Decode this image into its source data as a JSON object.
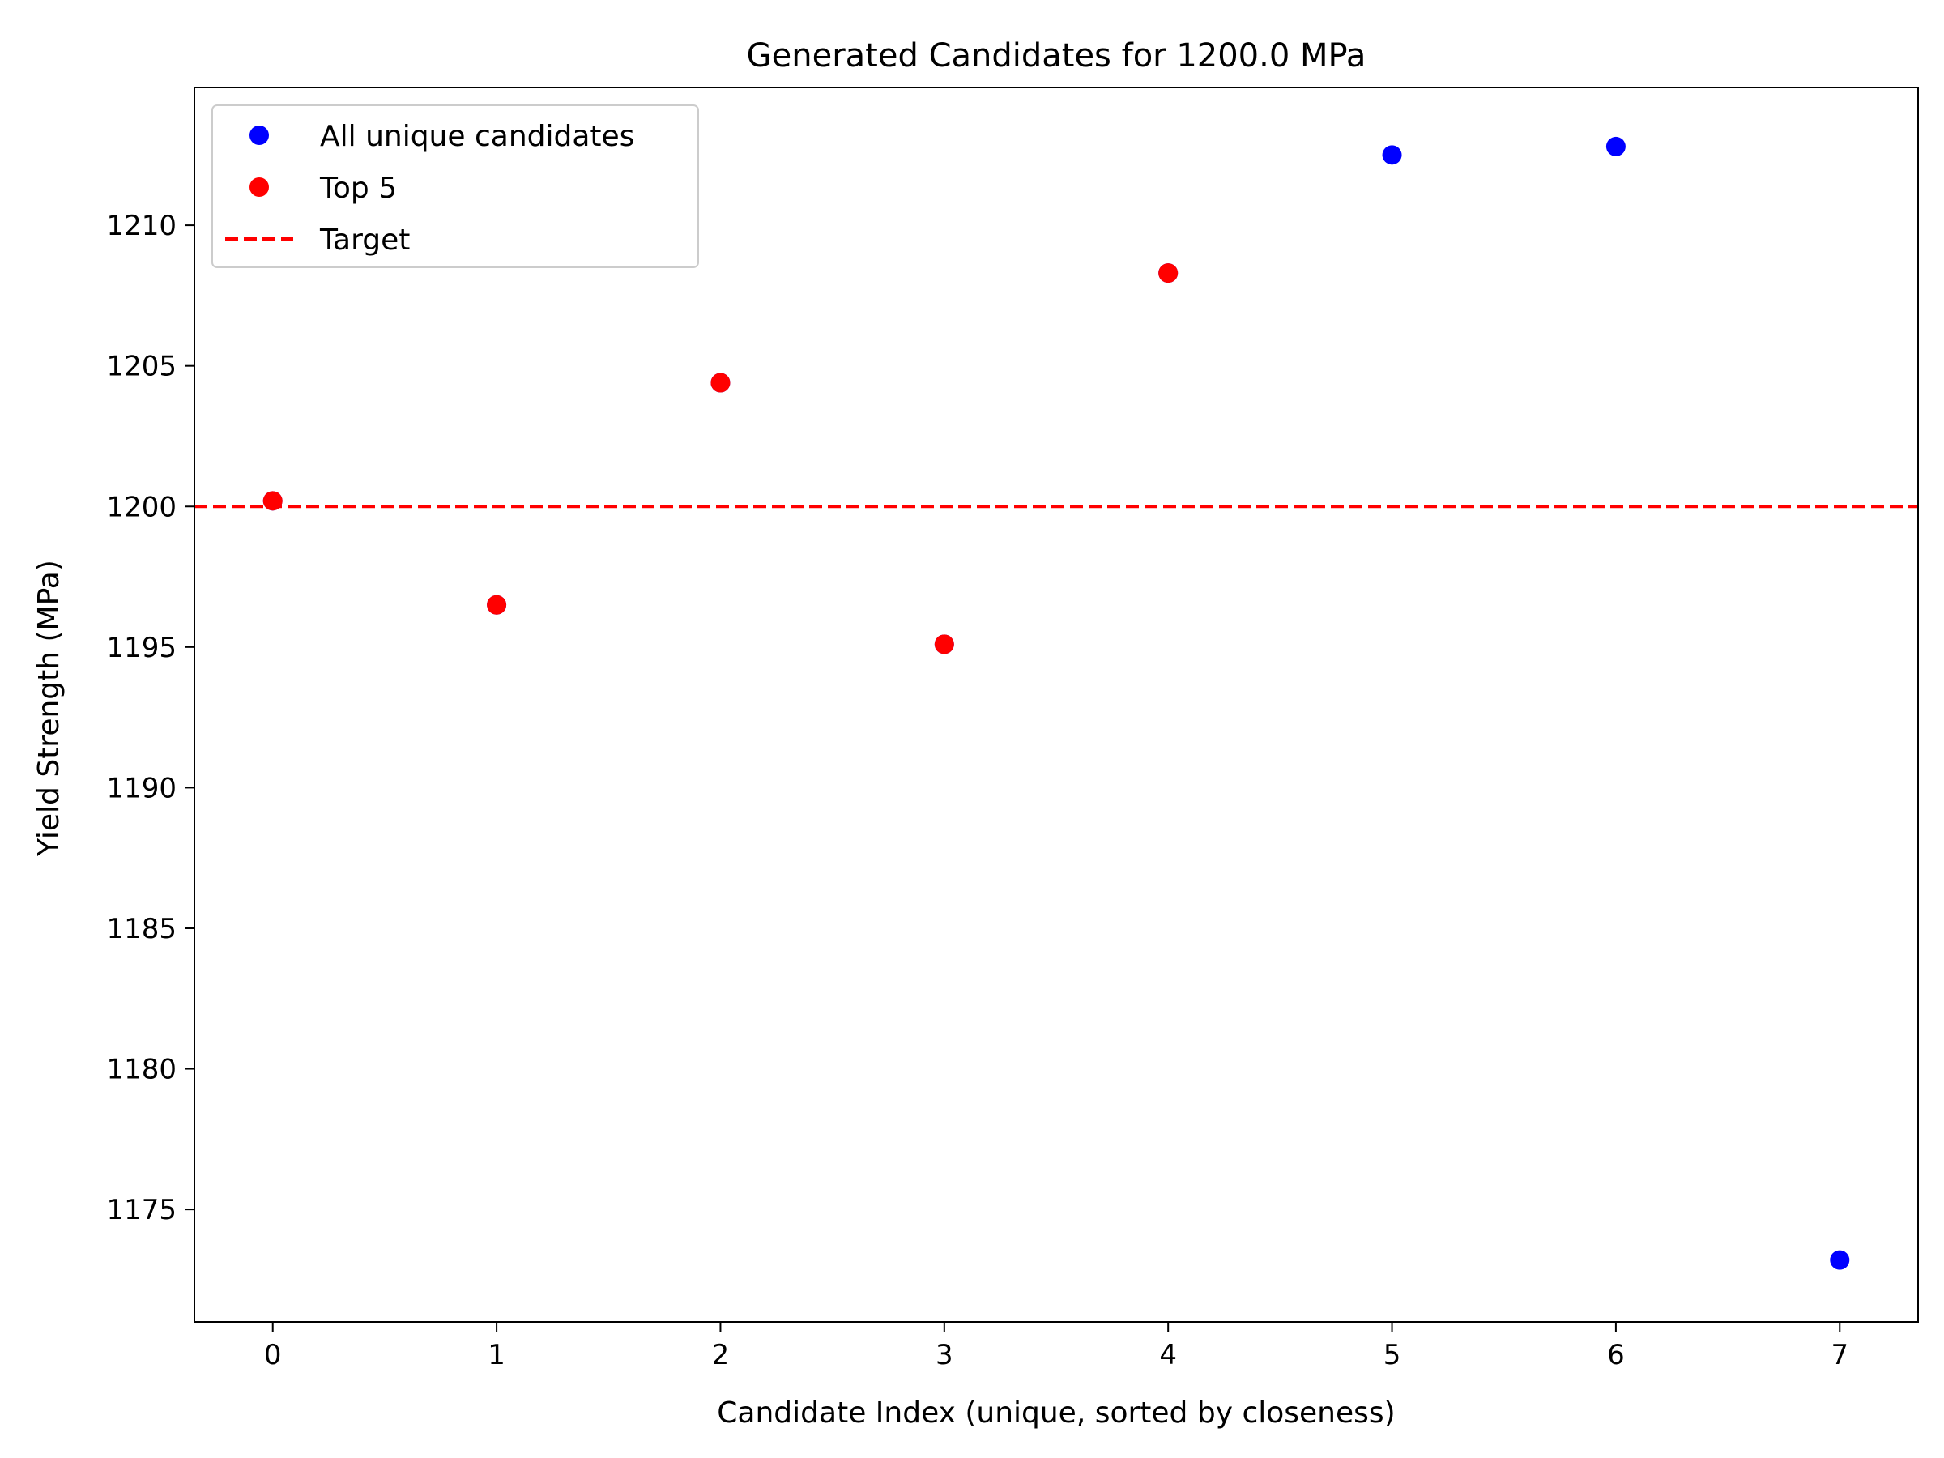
{
  "chart_data": {
    "type": "scatter",
    "title": "Generated Candidates for 1200.0 MPa",
    "xlabel": "Candidate Index (unique, sorted by closeness)",
    "ylabel": "Yield Strength (MPa)",
    "xlim": [
      -0.35,
      7.35
    ],
    "ylim": [
      1171,
      1214.9
    ],
    "x_ticks": [
      0,
      1,
      2,
      3,
      4,
      5,
      6,
      7
    ],
    "y_ticks": [
      1175,
      1180,
      1185,
      1190,
      1195,
      1200,
      1205,
      1210
    ],
    "grid": false,
    "legend_position": "top-left",
    "series": [
      {
        "name": "All unique candidates",
        "color": "#0000ff",
        "x": [
          0,
          1,
          2,
          3,
          4,
          5,
          6,
          7
        ],
        "y": [
          1200.2,
          1196.5,
          1204.4,
          1195.1,
          1208.3,
          1212.5,
          1212.8,
          1173.2
        ]
      },
      {
        "name": "Top 5",
        "color": "#ff0000",
        "x": [
          0,
          1,
          2,
          3,
          4
        ],
        "y": [
          1200.2,
          1196.5,
          1204.4,
          1195.1,
          1208.3
        ]
      }
    ],
    "reference_line": {
      "name": "Target",
      "y": 1200,
      "color": "#ff0000",
      "style": "dashed"
    }
  }
}
